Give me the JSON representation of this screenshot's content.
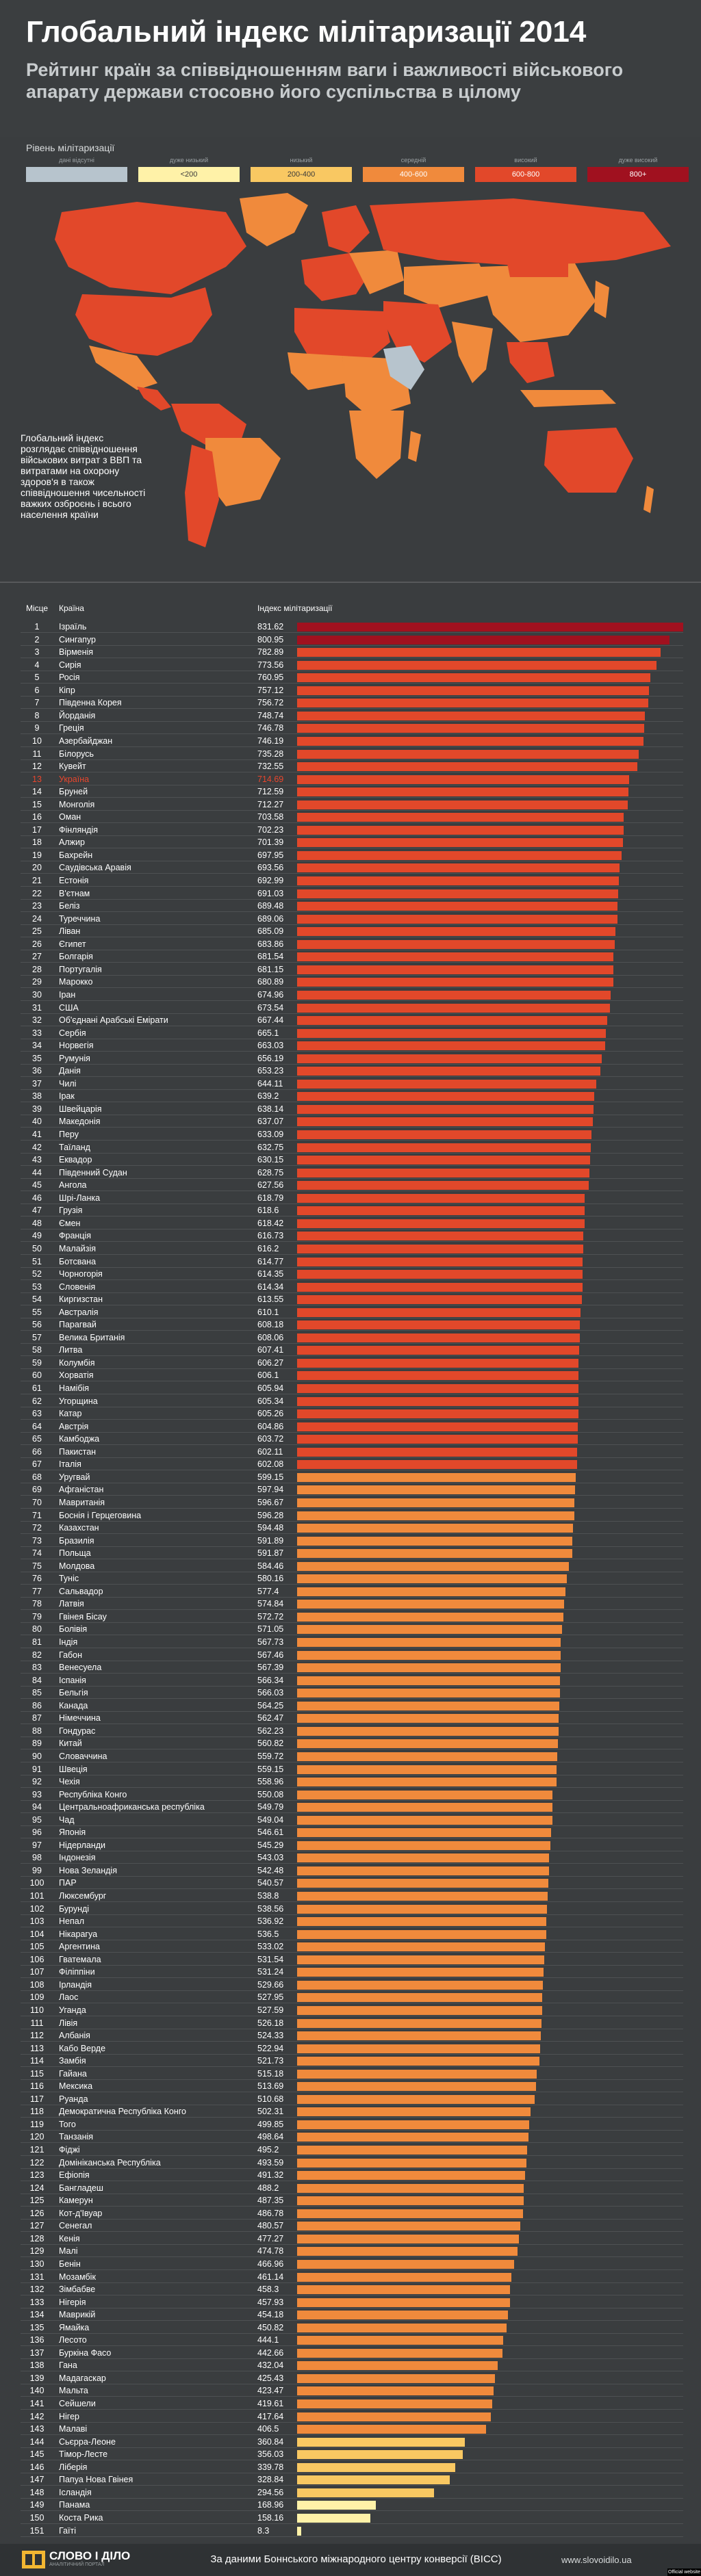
{
  "header": {
    "title": "Глобальний індекс мілітаризації 2014",
    "subtitle": "Рейтинг країн за співвідношенням ваги і важливості військового апарату держави стосовно його суспільства в цілому"
  },
  "legend": {
    "title": "Рівень мілітаризації",
    "items": [
      {
        "label": "дані відсутні",
        "range": "",
        "color": "#b7c4cd"
      },
      {
        "label": "дуже низький",
        "range": "<200",
        "color": "#fff2a8"
      },
      {
        "label": "низький",
        "range": "200-400",
        "color": "#f9c862"
      },
      {
        "label": "середній",
        "range": "400-600",
        "color": "#f08a3c"
      },
      {
        "label": "високий",
        "range": "600-800",
        "color": "#e2482a"
      },
      {
        "label": "дуже високий",
        "range": "800+",
        "color": "#a0111f"
      }
    ]
  },
  "map_note": "Глобальний індекс розглядає співвідношення військових витрат з ВВП та витратами на охорону здоров'я в також співвідношення чисельності важких озброєнь і всього населення країни",
  "table_headers": {
    "rank": "Місце",
    "country": "Країна",
    "index": "Індекс мілітаризації"
  },
  "highlight_country": "Україна",
  "footer": {
    "logo": "СЛОВО І ДІЛО",
    "logo_sub": "АНАЛІТИЧНИЙ ПОРТАЛ",
    "source": "За даними Боннського міжнародного центру конверсії (BICC)",
    "site": "www.slovoidilo.ua",
    "official": "Official website"
  },
  "chart_data": {
    "type": "bar",
    "title": "Глобальний індекс мілітаризації 2014",
    "orientation": "horizontal",
    "value_label": "Індекс мілітаризації",
    "xlim": [
      0,
      840
    ],
    "rows": [
      {
        "rank": 1,
        "country": "Ізраїль",
        "value": 831.62
      },
      {
        "rank": 2,
        "country": "Сингапур",
        "value": 800.95
      },
      {
        "rank": 3,
        "country": "Вірменія",
        "value": 782.89
      },
      {
        "rank": 4,
        "country": "Сирія",
        "value": 773.56
      },
      {
        "rank": 5,
        "country": "Росія",
        "value": 760.95
      },
      {
        "rank": 6,
        "country": "Кіпр",
        "value": 757.12
      },
      {
        "rank": 7,
        "country": "Південна Корея",
        "value": 756.72
      },
      {
        "rank": 8,
        "country": "Йорданія",
        "value": 748.74
      },
      {
        "rank": 9,
        "country": "Греція",
        "value": 746.78
      },
      {
        "rank": 10,
        "country": "Азербайджан",
        "value": 746.19
      },
      {
        "rank": 11,
        "country": "Білорусь",
        "value": 735.28
      },
      {
        "rank": 12,
        "country": "Кувейт",
        "value": 732.55
      },
      {
        "rank": 13,
        "country": "Україна",
        "value": 714.69
      },
      {
        "rank": 14,
        "country": "Бруней",
        "value": 712.59
      },
      {
        "rank": 15,
        "country": "Монголія",
        "value": 712.27
      },
      {
        "rank": 16,
        "country": "Оман",
        "value": 703.58
      },
      {
        "rank": 17,
        "country": "Фінляндія",
        "value": 702.23
      },
      {
        "rank": 18,
        "country": "Алжир",
        "value": 701.39
      },
      {
        "rank": 19,
        "country": "Бахрейн",
        "value": 697.95
      },
      {
        "rank": 20,
        "country": "Саудівська Аравія",
        "value": 693.56
      },
      {
        "rank": 21,
        "country": "Естонія",
        "value": 692.99
      },
      {
        "rank": 22,
        "country": "В'єтнам",
        "value": 691.03
      },
      {
        "rank": 23,
        "country": "Беліз",
        "value": 689.48
      },
      {
        "rank": 24,
        "country": "Туреччина",
        "value": 689.06
      },
      {
        "rank": 25,
        "country": "Ліван",
        "value": 685.09
      },
      {
        "rank": 26,
        "country": "Єгипет",
        "value": 683.86
      },
      {
        "rank": 27,
        "country": "Болгарія",
        "value": 681.54
      },
      {
        "rank": 28,
        "country": "Португалія",
        "value": 681.15
      },
      {
        "rank": 29,
        "country": "Марокко",
        "value": 680.89
      },
      {
        "rank": 30,
        "country": "Іран",
        "value": 674.96
      },
      {
        "rank": 31,
        "country": "США",
        "value": 673.54
      },
      {
        "rank": 32,
        "country": "Об'єднані Арабські Емірати",
        "value": 667.44
      },
      {
        "rank": 33,
        "country": "Сербія",
        "value": 665.1
      },
      {
        "rank": 34,
        "country": "Норвегія",
        "value": 663.03
      },
      {
        "rank": 35,
        "country": "Румунія",
        "value": 656.19
      },
      {
        "rank": 36,
        "country": "Данія",
        "value": 653.23
      },
      {
        "rank": 37,
        "country": "Чилі",
        "value": 644.11
      },
      {
        "rank": 38,
        "country": "Ірак",
        "value": 639.2
      },
      {
        "rank": 39,
        "country": "Швейцарія",
        "value": 638.14
      },
      {
        "rank": 40,
        "country": "Македонія",
        "value": 637.07
      },
      {
        "rank": 41,
        "country": "Перу",
        "value": 633.09
      },
      {
        "rank": 42,
        "country": "Таїланд",
        "value": 632.75
      },
      {
        "rank": 43,
        "country": "Еквадор",
        "value": 630.15
      },
      {
        "rank": 44,
        "country": "Південний Судан",
        "value": 628.75
      },
      {
        "rank": 45,
        "country": "Ангола",
        "value": 627.56
      },
      {
        "rank": 46,
        "country": "Шрі-Ланка",
        "value": 618.79
      },
      {
        "rank": 47,
        "country": "Грузія",
        "value": 618.6
      },
      {
        "rank": 48,
        "country": "Ємен",
        "value": 618.42
      },
      {
        "rank": 49,
        "country": "Франція",
        "value": 616.73
      },
      {
        "rank": 50,
        "country": "Малайзія",
        "value": 616.2
      },
      {
        "rank": 51,
        "country": "Ботсвана",
        "value": 614.77
      },
      {
        "rank": 52,
        "country": "Чорногорія",
        "value": 614.35
      },
      {
        "rank": 53,
        "country": "Словенія",
        "value": 614.34
      },
      {
        "rank": 54,
        "country": "Киргизстан",
        "value": 613.55
      },
      {
        "rank": 55,
        "country": "Австралія",
        "value": 610.1
      },
      {
        "rank": 56,
        "country": "Парагвай",
        "value": 608.18
      },
      {
        "rank": 57,
        "country": "Велика Британія",
        "value": 608.06
      },
      {
        "rank": 58,
        "country": "Литва",
        "value": 607.41
      },
      {
        "rank": 59,
        "country": "Колумбія",
        "value": 606.27
      },
      {
        "rank": 60,
        "country": "Хорватія",
        "value": 606.1
      },
      {
        "rank": 61,
        "country": "Намібія",
        "value": 605.94
      },
      {
        "rank": 62,
        "country": "Угорщина",
        "value": 605.34
      },
      {
        "rank": 63,
        "country": "Катар",
        "value": 605.26
      },
      {
        "rank": 64,
        "country": "Австрія",
        "value": 604.86
      },
      {
        "rank": 65,
        "country": "Камбоджа",
        "value": 603.72
      },
      {
        "rank": 66,
        "country": "Пакистан",
        "value": 602.11
      },
      {
        "rank": 67,
        "country": "Італія",
        "value": 602.08
      },
      {
        "rank": 68,
        "country": "Уругвай",
        "value": 599.15
      },
      {
        "rank": 69,
        "country": "Афганістан",
        "value": 597.94
      },
      {
        "rank": 70,
        "country": "Мавританія",
        "value": 596.67
      },
      {
        "rank": 71,
        "country": "Боснія і Герцеговина",
        "value": 596.28
      },
      {
        "rank": 72,
        "country": "Казахстан",
        "value": 594.48
      },
      {
        "rank": 73,
        "country": "Бразилія",
        "value": 591.89
      },
      {
        "rank": 74,
        "country": "Польща",
        "value": 591.87
      },
      {
        "rank": 75,
        "country": "Молдова",
        "value": 584.46
      },
      {
        "rank": 76,
        "country": "Туніс",
        "value": 580.16
      },
      {
        "rank": 77,
        "country": "Сальвадор",
        "value": 577.4
      },
      {
        "rank": 78,
        "country": "Латвія",
        "value": 574.84
      },
      {
        "rank": 79,
        "country": "Гвінея Бісау",
        "value": 572.72
      },
      {
        "rank": 80,
        "country": "Болівія",
        "value": 571.05
      },
      {
        "rank": 81,
        "country": "Індія",
        "value": 567.73
      },
      {
        "rank": 82,
        "country": "Габон",
        "value": 567.46
      },
      {
        "rank": 83,
        "country": "Венесуела",
        "value": 567.39
      },
      {
        "rank": 84,
        "country": "Іспанія",
        "value": 566.34
      },
      {
        "rank": 85,
        "country": "Бельгія",
        "value": 566.03
      },
      {
        "rank": 86,
        "country": "Канада",
        "value": 564.25
      },
      {
        "rank": 87,
        "country": "Німеччина",
        "value": 562.47
      },
      {
        "rank": 88,
        "country": "Гондурас",
        "value": 562.23
      },
      {
        "rank": 89,
        "country": "Китай",
        "value": 560.82
      },
      {
        "rank": 90,
        "country": "Словаччина",
        "value": 559.72
      },
      {
        "rank": 91,
        "country": "Швеція",
        "value": 559.15
      },
      {
        "rank": 92,
        "country": "Чехія",
        "value": 558.96
      },
      {
        "rank": 93,
        "country": "Республіка Конго",
        "value": 550.08
      },
      {
        "rank": 94,
        "country": "Центральноафриканська республіка",
        "value": 549.79
      },
      {
        "rank": 95,
        "country": "Чад",
        "value": 549.04
      },
      {
        "rank": 96,
        "country": "Японія",
        "value": 546.61
      },
      {
        "rank": 97,
        "country": "Нідерланди",
        "value": 545.29
      },
      {
        "rank": 98,
        "country": "Індонезія",
        "value": 543.03
      },
      {
        "rank": 99,
        "country": "Нова Зеландія",
        "value": 542.48
      },
      {
        "rank": 100,
        "country": "ПАР",
        "value": 540.57
      },
      {
        "rank": 101,
        "country": "Люксембург",
        "value": 538.8
      },
      {
        "rank": 102,
        "country": "Бурунді",
        "value": 538.56
      },
      {
        "rank": 103,
        "country": "Непал",
        "value": 536.92
      },
      {
        "rank": 104,
        "country": "Нікарагуа",
        "value": 536.5
      },
      {
        "rank": 105,
        "country": "Аргентина",
        "value": 533.02
      },
      {
        "rank": 106,
        "country": "Гватемала",
        "value": 531.54
      },
      {
        "rank": 107,
        "country": "Філіппіни",
        "value": 531.24
      },
      {
        "rank": 108,
        "country": "Ірландія",
        "value": 529.66
      },
      {
        "rank": 109,
        "country": "Лаос",
        "value": 527.95
      },
      {
        "rank": 110,
        "country": "Уганда",
        "value": 527.59
      },
      {
        "rank": 111,
        "country": "Лівія",
        "value": 526.18
      },
      {
        "rank": 112,
        "country": "Албанія",
        "value": 524.33
      },
      {
        "rank": 113,
        "country": "Кабо Верде",
        "value": 522.94
      },
      {
        "rank": 114,
        "country": "Замбія",
        "value": 521.73
      },
      {
        "rank": 115,
        "country": "Гайана",
        "value": 515.18
      },
      {
        "rank": 116,
        "country": "Мексика",
        "value": 513.69
      },
      {
        "rank": 117,
        "country": "Руанда",
        "value": 510.68
      },
      {
        "rank": 118,
        "country": "Демократична Республіка Конго",
        "value": 502.31
      },
      {
        "rank": 119,
        "country": "Того",
        "value": 499.85
      },
      {
        "rank": 120,
        "country": "Танзанія",
        "value": 498.64
      },
      {
        "rank": 121,
        "country": "Фіджі",
        "value": 495.2
      },
      {
        "rank": 122,
        "country": "Домініканська Республіка",
        "value": 493.59
      },
      {
        "rank": 123,
        "country": "Ефіопія",
        "value": 491.32
      },
      {
        "rank": 124,
        "country": "Бангладеш",
        "value": 488.2
      },
      {
        "rank": 125,
        "country": "Камерун",
        "value": 487.35
      },
      {
        "rank": 126,
        "country": "Кот-д'Івуар",
        "value": 486.78
      },
      {
        "rank": 127,
        "country": "Сенегал",
        "value": 480.57
      },
      {
        "rank": 128,
        "country": "Кенія",
        "value": 477.27
      },
      {
        "rank": 129,
        "country": "Малі",
        "value": 474.78
      },
      {
        "rank": 130,
        "country": "Бенін",
        "value": 466.96
      },
      {
        "rank": 131,
        "country": "Мозамбік",
        "value": 461.14
      },
      {
        "rank": 132,
        "country": "Зімбабве",
        "value": 458.3
      },
      {
        "rank": 133,
        "country": "Нігерія",
        "value": 457.93
      },
      {
        "rank": 134,
        "country": "Маврикій",
        "value": 454.18
      },
      {
        "rank": 135,
        "country": "Ямайка",
        "value": 450.82
      },
      {
        "rank": 136,
        "country": "Лесото",
        "value": 444.1
      },
      {
        "rank": 137,
        "country": "Буркіна Фасо",
        "value": 442.66
      },
      {
        "rank": 138,
        "country": "Гана",
        "value": 432.04
      },
      {
        "rank": 139,
        "country": "Мадагаскар",
        "value": 425.43
      },
      {
        "rank": 140,
        "country": "Мальта",
        "value": 423.47
      },
      {
        "rank": 141,
        "country": "Сейшели",
        "value": 419.61
      },
      {
        "rank": 142,
        "country": "Нігер",
        "value": 417.64
      },
      {
        "rank": 143,
        "country": "Малаві",
        "value": 406.5
      },
      {
        "rank": 144,
        "country": "Сьєрра-Леоне",
        "value": 360.84
      },
      {
        "rank": 145,
        "country": "Тімор-Лесте",
        "value": 356.03
      },
      {
        "rank": 146,
        "country": "Ліберія",
        "value": 339.78
      },
      {
        "rank": 147,
        "country": "Папуа Нова Гвінея",
        "value": 328.84
      },
      {
        "rank": 148,
        "country": "Ісландія",
        "value": 294.56
      },
      {
        "rank": 149,
        "country": "Панама",
        "value": 168.96
      },
      {
        "rank": 150,
        "country": "Коста Рика",
        "value": 158.16
      },
      {
        "rank": 151,
        "country": "Гаїті",
        "value": 8.3
      }
    ]
  }
}
